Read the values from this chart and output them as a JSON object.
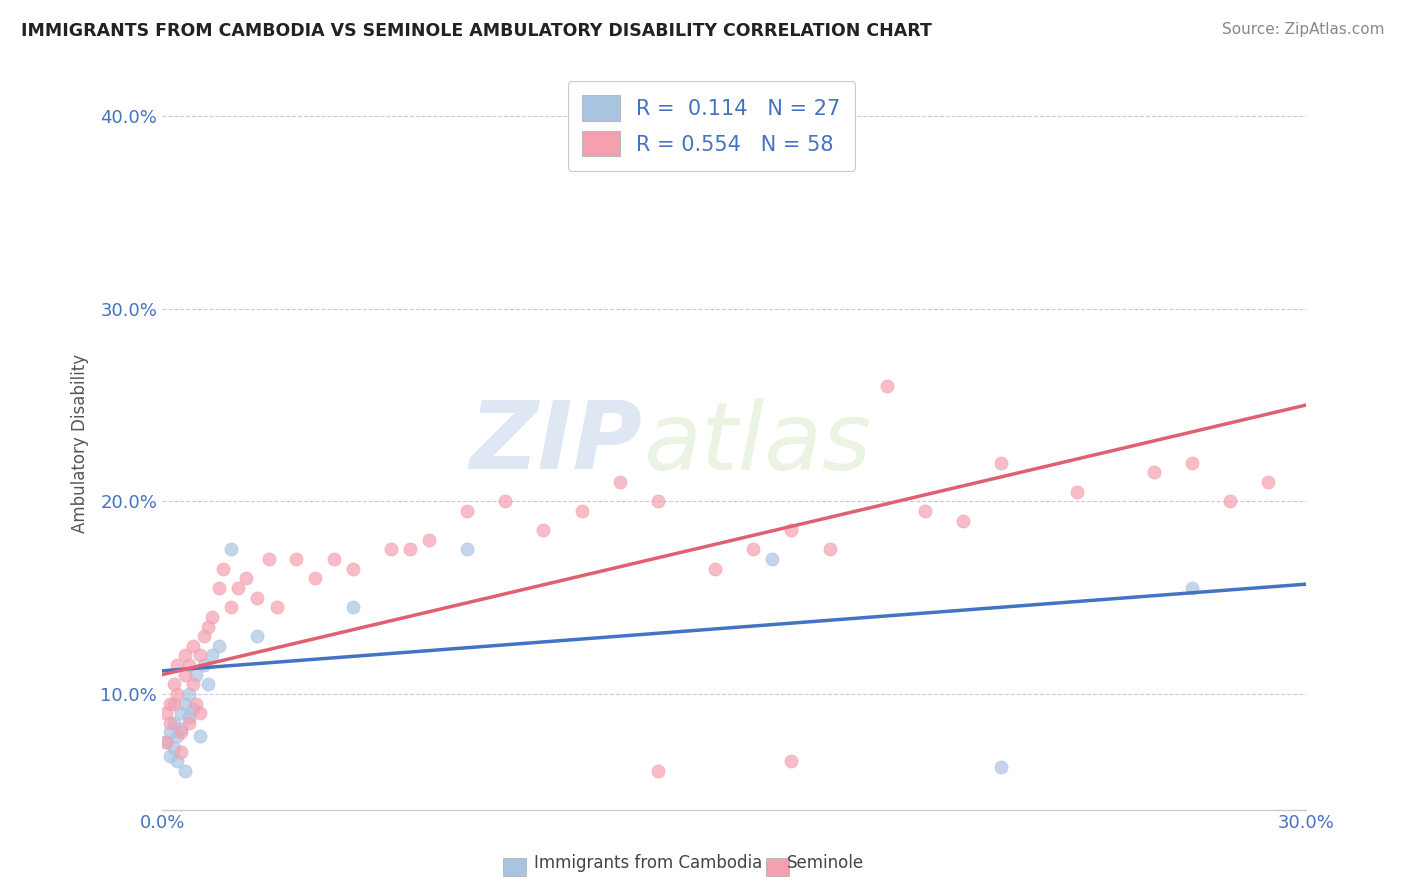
{
  "title": "IMMIGRANTS FROM CAMBODIA VS SEMINOLE AMBULATORY DISABILITY CORRELATION CHART",
  "source": "Source: ZipAtlas.com",
  "xlabel_label": "Immigrants from Cambodia",
  "xlabel_label2": "Seminole",
  "ylabel": "Ambulatory Disability",
  "xmin": 0.0,
  "xmax": 0.3,
  "ymin": 0.04,
  "ymax": 0.42,
  "yticks": [
    0.1,
    0.2,
    0.3,
    0.4
  ],
  "ytick_labels": [
    "10.0%",
    "20.0%",
    "30.0%",
    "40.0%"
  ],
  "xticks": [
    0.0,
    0.05,
    0.1,
    0.15,
    0.2,
    0.25,
    0.3
  ],
  "xtick_labels": [
    "0.0%",
    "",
    "",
    "",
    "",
    "",
    "30.0%"
  ],
  "legend_R1": "R =  0.114",
  "legend_N1": "N = 27",
  "legend_R2": "R = 0.554",
  "legend_N2": "N = 58",
  "color_blue": "#a8c4e0",
  "color_pink": "#f4a0b0",
  "color_blue_line": "#4472c4",
  "color_pink_line": "#e06070",
  "color_blue_text": "#4472c4",
  "trendline1_x": [
    0.0,
    0.3
  ],
  "trendline1_y": [
    0.112,
    0.157
  ],
  "trendline2_x": [
    0.0,
    0.3
  ],
  "trendline2_y": [
    0.11,
    0.25
  ],
  "scatter_blue_x": [
    0.001,
    0.002,
    0.002,
    0.003,
    0.003,
    0.004,
    0.004,
    0.005,
    0.005,
    0.006,
    0.006,
    0.007,
    0.007,
    0.008,
    0.009,
    0.01,
    0.011,
    0.012,
    0.013,
    0.015,
    0.018,
    0.025,
    0.05,
    0.08,
    0.16,
    0.22,
    0.27
  ],
  "scatter_blue_y": [
    0.075,
    0.068,
    0.08,
    0.072,
    0.085,
    0.065,
    0.078,
    0.082,
    0.09,
    0.095,
    0.06,
    0.088,
    0.1,
    0.092,
    0.11,
    0.078,
    0.115,
    0.105,
    0.12,
    0.125,
    0.175,
    0.13,
    0.145,
    0.175,
    0.17,
    0.062,
    0.155
  ],
  "scatter_pink_x": [
    0.001,
    0.001,
    0.002,
    0.002,
    0.003,
    0.003,
    0.004,
    0.004,
    0.005,
    0.005,
    0.006,
    0.006,
    0.007,
    0.007,
    0.008,
    0.008,
    0.009,
    0.01,
    0.01,
    0.011,
    0.012,
    0.013,
    0.015,
    0.016,
    0.018,
    0.02,
    0.022,
    0.025,
    0.028,
    0.03,
    0.035,
    0.04,
    0.045,
    0.05,
    0.06,
    0.065,
    0.07,
    0.08,
    0.09,
    0.1,
    0.11,
    0.12,
    0.13,
    0.145,
    0.155,
    0.165,
    0.175,
    0.19,
    0.2,
    0.21,
    0.22,
    0.24,
    0.26,
    0.27,
    0.28,
    0.29,
    0.13,
    0.165
  ],
  "scatter_pink_y": [
    0.075,
    0.09,
    0.085,
    0.095,
    0.095,
    0.105,
    0.1,
    0.115,
    0.07,
    0.08,
    0.11,
    0.12,
    0.085,
    0.115,
    0.105,
    0.125,
    0.095,
    0.09,
    0.12,
    0.13,
    0.135,
    0.14,
    0.155,
    0.165,
    0.145,
    0.155,
    0.16,
    0.15,
    0.17,
    0.145,
    0.17,
    0.16,
    0.17,
    0.165,
    0.175,
    0.175,
    0.18,
    0.195,
    0.2,
    0.185,
    0.195,
    0.21,
    0.2,
    0.165,
    0.175,
    0.185,
    0.175,
    0.26,
    0.195,
    0.19,
    0.22,
    0.205,
    0.215,
    0.22,
    0.2,
    0.21,
    0.06,
    0.065
  ],
  "watermark_zip": "ZIP",
  "watermark_atlas": "atlas",
  "background_color": "#ffffff",
  "grid_color": "#cccccc"
}
